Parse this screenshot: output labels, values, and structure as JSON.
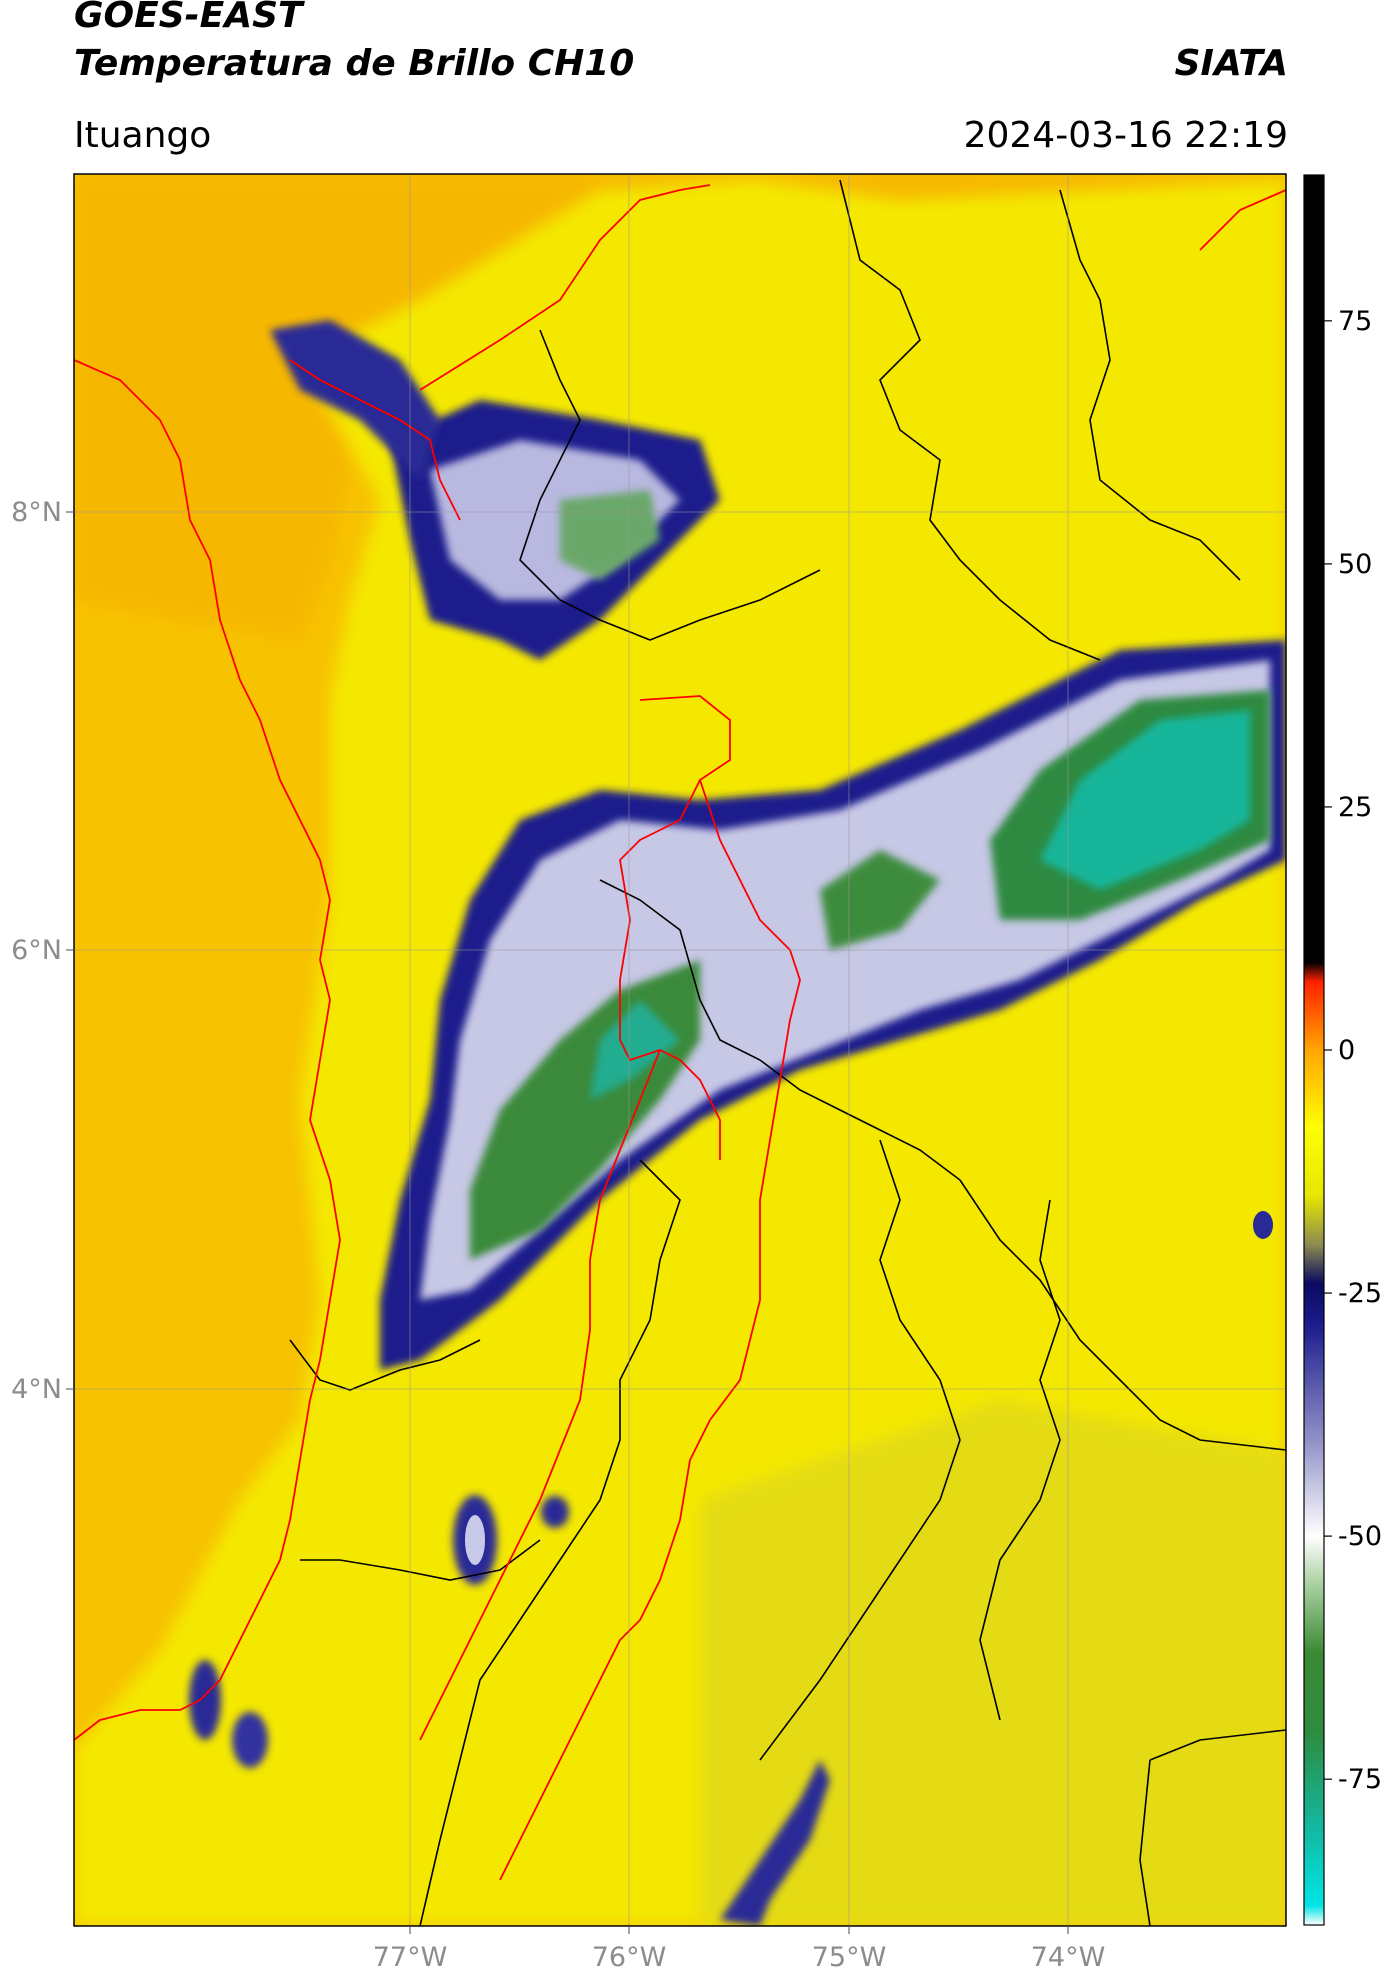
{
  "header": {
    "satellite": "GOES-EAST",
    "product": "Temperatura de Brillo CH10",
    "agency": "SIATA",
    "location": "Ituango",
    "datetime": "2024-03-16 22:19"
  },
  "map": {
    "lat_labels": [
      "8°N",
      "6°N",
      "4°N"
    ],
    "lon_labels": [
      "77°W",
      "76°W",
      "75°W",
      "74°W"
    ]
  },
  "colorbar": {
    "ticks": [
      "75",
      "50",
      "25",
      "0",
      "-25",
      "-50",
      "-75"
    ],
    "tick_values": [
      75,
      50,
      25,
      0,
      -25,
      -50,
      -75
    ],
    "range": [
      -90,
      90
    ],
    "stops": [
      {
        "v": -90,
        "c": "#ffffff"
      },
      {
        "v": -88,
        "c": "#00e5e5"
      },
      {
        "v": -80,
        "c": "#13b8a0"
      },
      {
        "v": -70,
        "c": "#2e8b3e"
      },
      {
        "v": -62,
        "c": "#3b8a34"
      },
      {
        "v": -55,
        "c": "#a8d0a0"
      },
      {
        "v": -50,
        "c": "#ffffff"
      },
      {
        "v": -40,
        "c": "#8f8fc7"
      },
      {
        "v": -28,
        "c": "#1a1a8c"
      },
      {
        "v": -24,
        "c": "#0a0a60"
      },
      {
        "v": -20,
        "c": "#8c8c50"
      },
      {
        "v": -15,
        "c": "#e6e600"
      },
      {
        "v": -8,
        "c": "#ffff00"
      },
      {
        "v": 0,
        "c": "#ffa500"
      },
      {
        "v": 7,
        "c": "#ff2200"
      },
      {
        "v": 9,
        "c": "#000000"
      },
      {
        "v": 90,
        "c": "#000000"
      }
    ]
  },
  "colors": {
    "warm": "#f6b800",
    "mid": "#f5ea00",
    "frame": "#000000",
    "grid": "#999999",
    "border_red": "#ff0000"
  }
}
